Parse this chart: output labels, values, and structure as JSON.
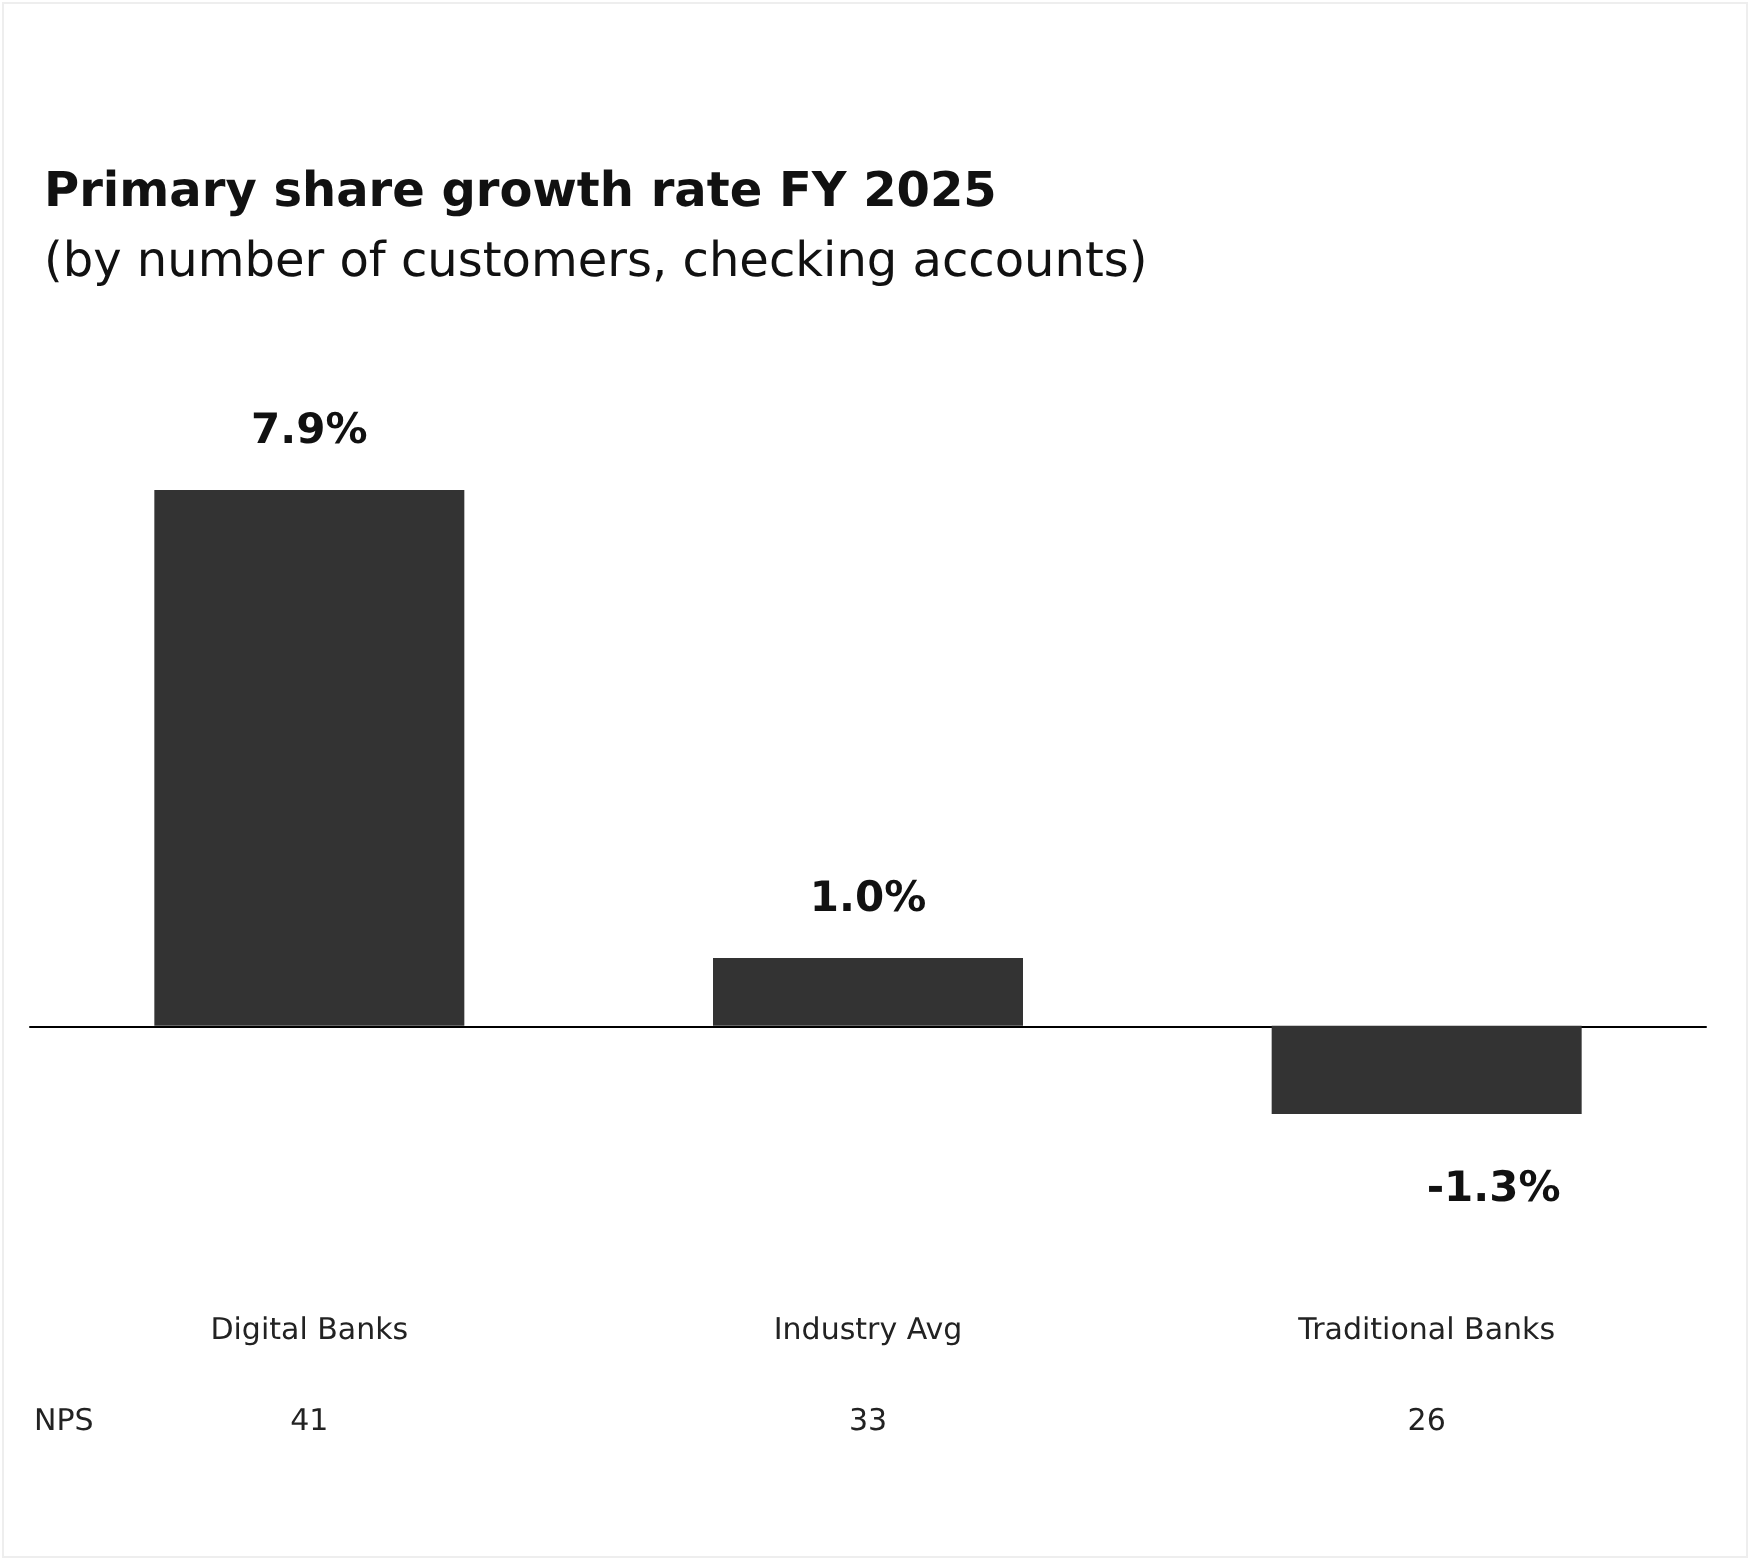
{
  "chart_data": {
    "type": "bar",
    "title": "Primary share growth rate FY 2025",
    "subtitle": "(by number of customers, checking accounts)",
    "categories": [
      "Digital Banks",
      "Industry Avg",
      "Traditional Banks"
    ],
    "values": [
      7.9,
      1.0,
      -1.3
    ],
    "color": "#333333",
    "value_labels": [
      "7.9%",
      "1.0%",
      "-1.3%"
    ],
    "annotations": [
      "NPS",
      "41",
      "33",
      "26"
    ]
  }
}
